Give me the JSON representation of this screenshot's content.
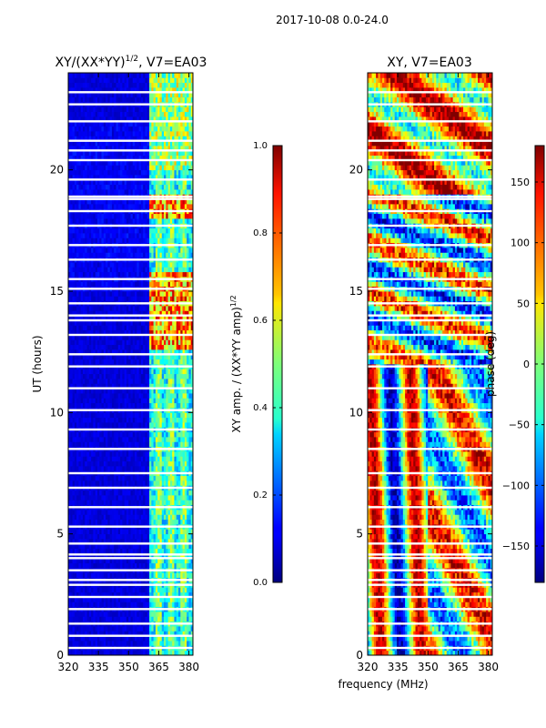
{
  "suptitle": "2017-10-08 0.0-24.0",
  "chart_data": [
    {
      "type": "heatmap",
      "title_main": "XY/(XX*YY)",
      "title_sup": "1/2",
      "title_rest": ", V7=EA03",
      "xlabel": "",
      "ylabel": "UT (hours)",
      "xlim": [
        320,
        382
      ],
      "ylim": [
        0,
        24
      ],
      "xticks": [
        320,
        335,
        350,
        365,
        380
      ],
      "yticks": [
        0,
        5,
        10,
        15,
        20
      ],
      "colorbar": {
        "label_main": "XY amp. / (XX*YY amp)",
        "label_sup": "1/2",
        "range": [
          0.0,
          1.0
        ],
        "ticks": [
          "0.0",
          "0.2",
          "0.4",
          "0.6",
          "0.8",
          "1.0"
        ],
        "tick_values": [
          0.0,
          0.2,
          0.4,
          0.6,
          0.8,
          1.0
        ]
      },
      "colormap": "jet",
      "bright_frequency_band_mhz": [
        360,
        382
      ],
      "flagged_hours": [
        0.3,
        0.8,
        1.3,
        1.9,
        2.4,
        2.9,
        3.1,
        3.5,
        4.0,
        4.15,
        4.6,
        5.3,
        6.1,
        6.9,
        7.5,
        8.5,
        9.3,
        10.1,
        11.0,
        11.9,
        12.4,
        13.2,
        13.8,
        14.0,
        14.5,
        15.1,
        15.5,
        16.3,
        16.9,
        17.7,
        18.3,
        18.8,
        18.9,
        19.6,
        20.4,
        20.8,
        21.2,
        22.0,
        22.7,
        23.2
      ]
    },
    {
      "type": "heatmap",
      "title": "XY, V7=EA03",
      "xlabel": "frequency (MHz)",
      "ylabel": "",
      "xlim": [
        320,
        382
      ],
      "ylim": [
        0,
        24
      ],
      "xticks": [
        320,
        335,
        350,
        365,
        380
      ],
      "yticks": [
        0,
        5,
        10,
        15,
        20
      ],
      "colorbar": {
        "label": "phase (deg)",
        "range": [
          -180,
          180
        ],
        "ticks": [
          "150",
          "100",
          "50",
          "0",
          "−50",
          "−100",
          "−150"
        ],
        "tick_values": [
          150,
          100,
          50,
          0,
          -50,
          -100,
          -150
        ]
      },
      "colormap": "jet",
      "flagged_hours": [
        0.3,
        0.8,
        1.3,
        1.9,
        2.4,
        2.9,
        3.1,
        3.5,
        4.0,
        4.15,
        4.6,
        5.3,
        6.1,
        6.9,
        7.5,
        8.5,
        9.3,
        10.1,
        11.0,
        11.9,
        12.4,
        13.2,
        13.8,
        14.0,
        14.5,
        15.1,
        15.5,
        16.3,
        16.9,
        17.7,
        18.3,
        18.8,
        18.9,
        19.6,
        20.4,
        20.8,
        21.2,
        22.0,
        22.7,
        23.2
      ]
    }
  ]
}
